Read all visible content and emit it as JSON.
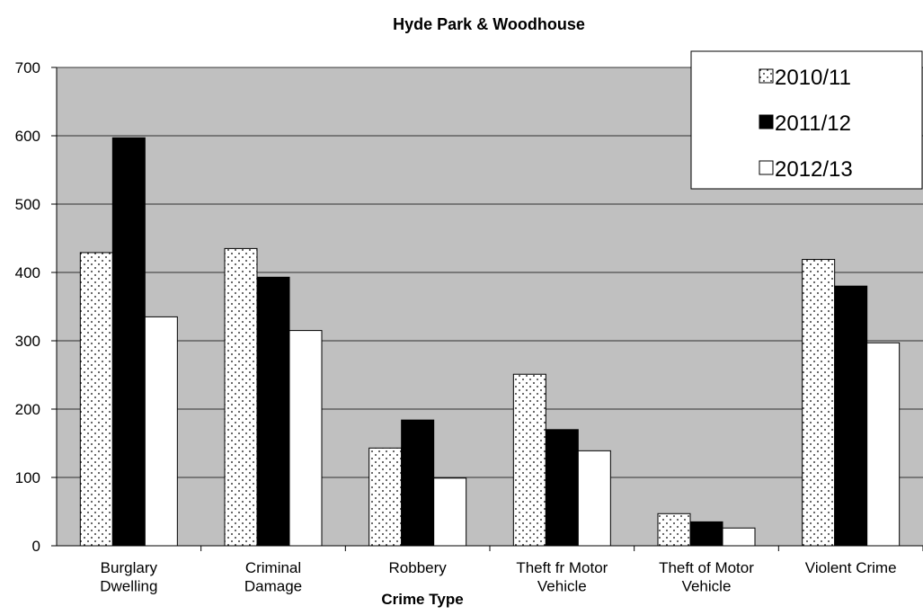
{
  "chart_data": {
    "type": "bar",
    "title": "Hyde Park & Woodhouse",
    "x_label": "Crime Type",
    "categories": [
      "Burglary\nDwelling",
      "Criminal\nDamage",
      "Robbery",
      "Theft fr Motor\nVehicle",
      "Theft of Motor\nVehicle",
      "Violent Crime"
    ],
    "series": [
      {
        "name": "2010/11",
        "color": "#ffffff",
        "pattern": "dots",
        "values": [
          429,
          435,
          143,
          251,
          47,
          419
        ]
      },
      {
        "name": "2011/12",
        "color": "#000000",
        "values": [
          597,
          393,
          184,
          170,
          35,
          380
        ]
      },
      {
        "name": "2012/13",
        "color": "#ffffff",
        "values": [
          335,
          315,
          99,
          139,
          26,
          297
        ]
      }
    ],
    "ylim": [
      0,
      700
    ],
    "yticks": [
      0,
      100,
      200,
      300,
      400,
      500,
      600,
      700
    ],
    "grid": true,
    "plot_background": "#c0c0c0",
    "legend_position": "top-right"
  }
}
